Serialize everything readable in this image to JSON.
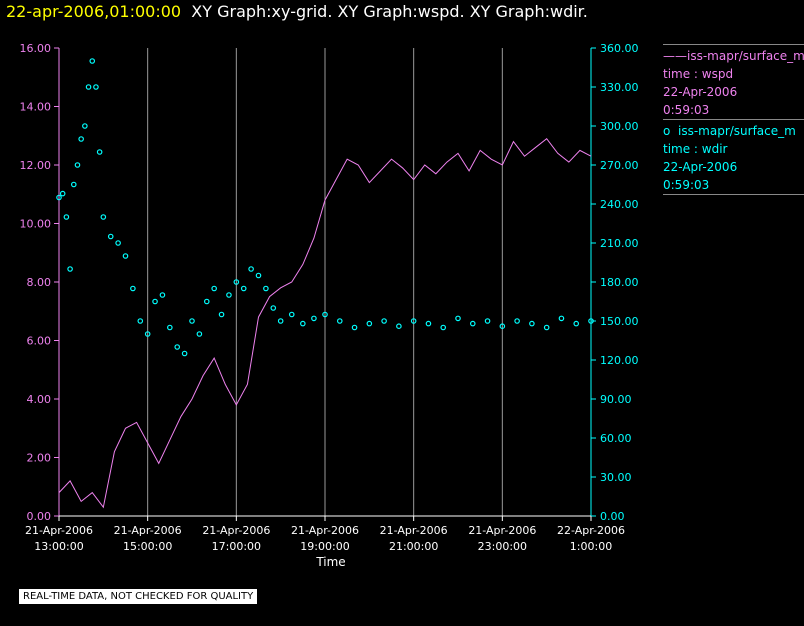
{
  "header": {
    "date": "22-apr-2006,01:00:00",
    "graphs": "XY Graph:xy-grid.  XY Graph:wspd.  XY Graph:wdir."
  },
  "legend": [
    {
      "marker": "——",
      "name": "iss-mapr/surface_m",
      "line2": "time : wspd",
      "line3": "22-Apr-2006",
      "line4": "0:59:03",
      "color": "#ee82ee"
    },
    {
      "marker": "o",
      "name": "iss-mapr/surface_m",
      "line2": "time : wdir",
      "line3": "22-Apr-2006",
      "line4": "0:59:03",
      "color": "#00ffff"
    }
  ],
  "disclaimer": "REAL-TIME DATA, NOT CHECKED FOR QUALITY",
  "chart_data": {
    "type": "line",
    "xlabel": "Time",
    "x_ticks": [
      {
        "date": "21-Apr-2006",
        "time": "13:00:00"
      },
      {
        "date": "21-Apr-2006",
        "time": "15:00:00"
      },
      {
        "date": "21-Apr-2006",
        "time": "17:00:00"
      },
      {
        "date": "21-Apr-2006",
        "time": "19:00:00"
      },
      {
        "date": "21-Apr-2006",
        "time": "21:00:00"
      },
      {
        "date": "21-Apr-2006",
        "time": "23:00:00"
      },
      {
        "date": "22-Apr-2006",
        "time": "1:00:00"
      }
    ],
    "xlim": [
      "2006-04-21 13:00",
      "2006-04-22 01:00"
    ],
    "y_left": {
      "ylim": [
        0,
        16
      ],
      "ticks": [
        "0.00",
        "2.00",
        "4.00",
        "6.00",
        "8.00",
        "10.00",
        "12.00",
        "14.00",
        "16.00"
      ],
      "color": "#ee82ee"
    },
    "y_right": {
      "ylim": [
        0,
        360
      ],
      "ticks": [
        "0.00",
        "30.00",
        "60.00",
        "90.00",
        "120.00",
        "150.00",
        "180.00",
        "210.00",
        "240.00",
        "270.00",
        "300.00",
        "330.00",
        "360.00"
      ],
      "color": "#00ffff"
    },
    "grid": true,
    "series": [
      {
        "name": "wspd",
        "axis": "left",
        "style": "line",
        "color": "#ee82ee",
        "x": [
          "2006-04-21 13:00",
          "2006-04-21 13:15",
          "2006-04-21 13:30",
          "2006-04-21 13:45",
          "2006-04-21 14:00",
          "2006-04-21 14:15",
          "2006-04-21 14:30",
          "2006-04-21 14:45",
          "2006-04-21 15:00",
          "2006-04-21 15:15",
          "2006-04-21 15:30",
          "2006-04-21 15:45",
          "2006-04-21 16:00",
          "2006-04-21 16:15",
          "2006-04-21 16:30",
          "2006-04-21 16:45",
          "2006-04-21 17:00",
          "2006-04-21 17:15",
          "2006-04-21 17:30",
          "2006-04-21 17:45",
          "2006-04-21 18:00",
          "2006-04-21 18:15",
          "2006-04-21 18:30",
          "2006-04-21 18:45",
          "2006-04-21 19:00",
          "2006-04-21 19:15",
          "2006-04-21 19:30",
          "2006-04-21 19:45",
          "2006-04-21 20:00",
          "2006-04-21 20:15",
          "2006-04-21 20:30",
          "2006-04-21 20:45",
          "2006-04-21 21:00",
          "2006-04-21 21:15",
          "2006-04-21 21:30",
          "2006-04-21 21:45",
          "2006-04-21 22:00",
          "2006-04-21 22:15",
          "2006-04-21 22:30",
          "2006-04-21 22:45",
          "2006-04-21 23:00",
          "2006-04-21 23:15",
          "2006-04-21 23:30",
          "2006-04-21 23:45",
          "2006-04-22 00:00",
          "2006-04-22 00:15",
          "2006-04-22 00:30",
          "2006-04-22 00:45",
          "2006-04-22 01:00"
        ],
        "values": [
          0.8,
          1.2,
          0.5,
          0.8,
          0.3,
          2.2,
          3.0,
          3.2,
          2.5,
          1.8,
          2.6,
          3.4,
          4.0,
          4.8,
          5.4,
          4.5,
          3.8,
          4.5,
          6.8,
          7.5,
          7.8,
          8.0,
          8.6,
          9.5,
          10.8,
          11.5,
          12.2,
          12.0,
          11.4,
          11.8,
          12.2,
          11.9,
          11.5,
          12.0,
          11.7,
          12.1,
          12.4,
          11.8,
          12.5,
          12.2,
          12.0,
          12.8,
          12.3,
          12.6,
          12.9,
          12.4,
          12.1,
          12.5,
          12.3
        ]
      },
      {
        "name": "wdir",
        "axis": "right",
        "style": "points",
        "color": "#00ffff",
        "x": [
          "2006-04-21 13:00",
          "2006-04-21 13:05",
          "2006-04-21 13:10",
          "2006-04-21 13:15",
          "2006-04-21 13:20",
          "2006-04-21 13:25",
          "2006-04-21 13:30",
          "2006-04-21 13:35",
          "2006-04-21 13:40",
          "2006-04-21 13:45",
          "2006-04-21 13:50",
          "2006-04-21 13:55",
          "2006-04-21 14:00",
          "2006-04-21 14:10",
          "2006-04-21 14:20",
          "2006-04-21 14:30",
          "2006-04-21 14:40",
          "2006-04-21 14:50",
          "2006-04-21 15:00",
          "2006-04-21 15:10",
          "2006-04-21 15:20",
          "2006-04-21 15:30",
          "2006-04-21 15:40",
          "2006-04-21 15:50",
          "2006-04-21 16:00",
          "2006-04-21 16:10",
          "2006-04-21 16:20",
          "2006-04-21 16:30",
          "2006-04-21 16:40",
          "2006-04-21 16:50",
          "2006-04-21 17:00",
          "2006-04-21 17:10",
          "2006-04-21 17:20",
          "2006-04-21 17:30",
          "2006-04-21 17:40",
          "2006-04-21 17:50",
          "2006-04-21 18:00",
          "2006-04-21 18:15",
          "2006-04-21 18:30",
          "2006-04-21 18:45",
          "2006-04-21 19:00",
          "2006-04-21 19:20",
          "2006-04-21 19:40",
          "2006-04-21 20:00",
          "2006-04-21 20:20",
          "2006-04-21 20:40",
          "2006-04-21 21:00",
          "2006-04-21 21:20",
          "2006-04-21 21:40",
          "2006-04-21 22:00",
          "2006-04-21 22:20",
          "2006-04-21 22:40",
          "2006-04-21 23:00",
          "2006-04-21 23:20",
          "2006-04-21 23:40",
          "2006-04-22 00:00",
          "2006-04-22 00:20",
          "2006-04-22 00:40",
          "2006-04-22 01:00"
        ],
        "values": [
          245,
          248,
          230,
          190,
          255,
          270,
          290,
          300,
          330,
          350,
          330,
          280,
          230,
          215,
          210,
          200,
          175,
          150,
          140,
          165,
          170,
          145,
          130,
          125,
          150,
          140,
          165,
          175,
          155,
          170,
          180,
          175,
          190,
          185,
          175,
          160,
          150,
          155,
          148,
          152,
          155,
          150,
          145,
          148,
          150,
          146,
          150,
          148,
          145,
          152,
          148,
          150,
          146,
          150,
          148,
          145,
          152,
          148,
          150
        ]
      }
    ]
  }
}
